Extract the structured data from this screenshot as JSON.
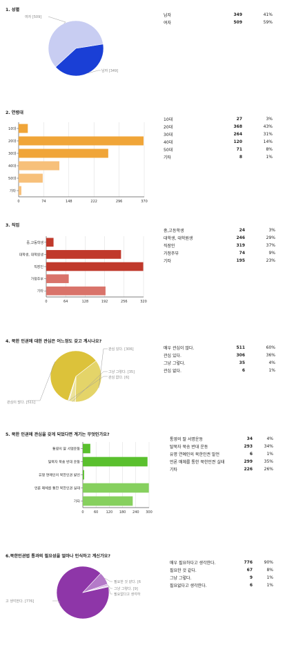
{
  "chart_data": [
    {
      "type": "pie",
      "title": "1. 성별",
      "categories": [
        "남자",
        "여자"
      ],
      "values": [
        349,
        509
      ],
      "percents": [
        "41%",
        "59%"
      ],
      "slice_labels": [
        "남자 [349]",
        "여자 [509]"
      ],
      "colors": [
        "#1a3fd6",
        "#c8cdf2"
      ]
    },
    {
      "type": "bar",
      "title": "2. 연령대",
      "categories": [
        "10대",
        "20대",
        "30대",
        "40대",
        "50대",
        "기타"
      ],
      "values": [
        27,
        368,
        264,
        120,
        71,
        8
      ],
      "percents": [
        "3%",
        "43%",
        "31%",
        "14%",
        "8%",
        "1%"
      ],
      "xticks": [
        "0",
        "74",
        "148",
        "222",
        "296",
        "370"
      ],
      "xlim": [
        0,
        370
      ],
      "colors": [
        "#f0a538",
        "#f0a538",
        "#f0a538",
        "#f7c07a",
        "#f7c07a",
        "#f7c07a"
      ]
    },
    {
      "type": "bar",
      "title": "3. 직업",
      "categories": [
        "중,고등학생",
        "대학생, 대학원생",
        "직장인",
        "가정주부",
        "기타"
      ],
      "values": [
        24,
        246,
        319,
        74,
        195
      ],
      "percents": [
        "3%",
        "29%",
        "37%",
        "9%",
        "23%"
      ],
      "xticks": [
        "0",
        "64",
        "128",
        "192",
        "256",
        "320"
      ],
      "xlim": [
        0,
        320
      ],
      "colors": [
        "#c0392b",
        "#c0392b",
        "#c0392b",
        "#d9736a",
        "#d9736a"
      ]
    },
    {
      "type": "pie",
      "title": "4. 북한 인권에 대한 관심은 어느정도 갖고 계시나요?",
      "categories": [
        "매우 관심이 많다.",
        "관심 있다.",
        "그냥 그렇다.",
        "관심 없다."
      ],
      "values": [
        511,
        306,
        35,
        6
      ],
      "percents": [
        "60%",
        "36%",
        "4%",
        "1%"
      ],
      "slice_labels": [
        "관심이 많다. [511]",
        "관심 있다. [306]",
        "그냥 그렇다. [35]",
        "관심 없다. [6]"
      ],
      "colors": [
        "#dcc23a",
        "#e4d469",
        "#ece29a",
        "#f3edc6"
      ]
    },
    {
      "type": "bar",
      "title": "5. 북한 인권에 관심을 갖게 되었다면 계기는 무엇인가요?",
      "categories": [
        "통영의 딸 서명운동",
        "탈북자 북송 반대 운동",
        "유명 연예인의 북한인권 발언",
        "언론 매체를 통한 북한인권 실태",
        "기타"
      ],
      "axis_labels": [
        "통영의 딸 서명운동",
        "탈북자 북송 반대 운동",
        "유명 연예인의 북한인권 발언",
        "언론 매체를 통한 북한인권 실태",
        "기타"
      ],
      "values": [
        34,
        293,
        6,
        299,
        226
      ],
      "percents": [
        "4%",
        "34%",
        "1%",
        "35%",
        "26%"
      ],
      "xticks": [
        "0",
        "60",
        "120",
        "180",
        "240",
        "300"
      ],
      "xlim": [
        0,
        300
      ],
      "colors": [
        "#5ac02e",
        "#5ac02e",
        "#5ac02e",
        "#86d05e",
        "#86d05e"
      ]
    },
    {
      "type": "pie",
      "title": "6.북한인권법 통과의 필요성을 얼마나 인식하고 계신가요?",
      "categories": [
        "매우 필요하다고 생각한다.",
        "필요한 것 같다.",
        "그냥 그렇다.",
        "필요없다고 생각한다."
      ],
      "values": [
        776,
        67,
        9,
        6
      ],
      "percents": [
        "90%",
        "8%",
        "1%",
        "1%"
      ],
      "slice_labels": [
        "고 생각한다. [776]",
        "필요한 것 같다. [6",
        "그냥 그렇다. [9]",
        "필요없다고 생각하"
      ],
      "colors": [
        "#8e36a8",
        "#b47ac8",
        "#cfa9dc",
        "#e6d2ee"
      ]
    }
  ]
}
